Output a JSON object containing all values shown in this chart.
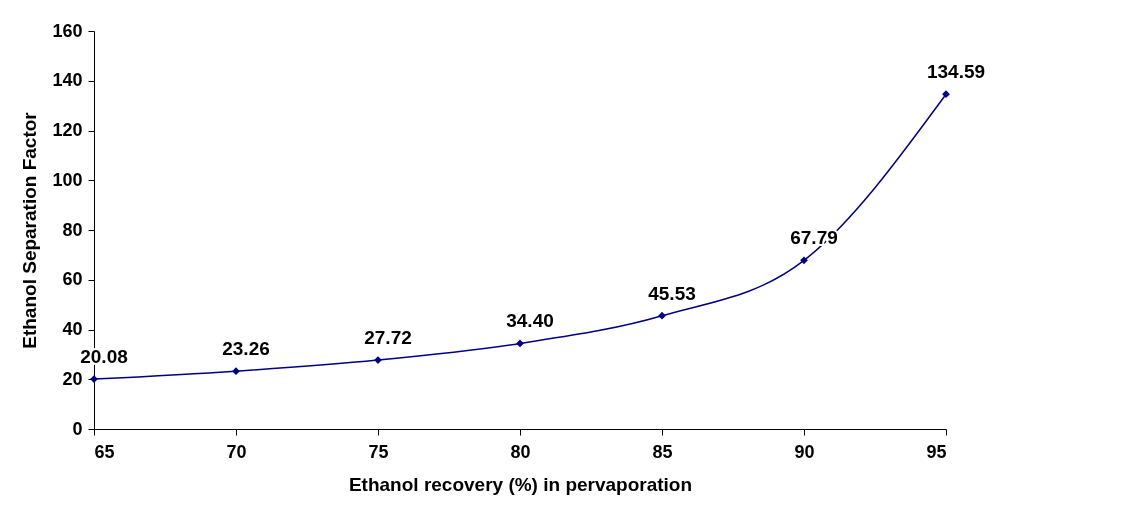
{
  "chart_data": {
    "type": "line",
    "xlabel": "Ethanol recovery (%) in pervaporation",
    "ylabel": "Ethanol Separation Factor",
    "x": [
      65,
      70,
      75,
      80,
      85,
      90,
      95
    ],
    "series": [
      {
        "color": "#000080",
        "values": [
          20.08,
          23.26,
          27.72,
          34.4,
          45.53,
          67.79,
          134.59
        ],
        "value_labels": [
          "20.08",
          "23.26",
          "27.72",
          "34.40",
          "45.53",
          "67.79",
          "134.59"
        ]
      }
    ],
    "xlim": [
      65,
      95
    ],
    "xticks": [
      65,
      70,
      75,
      80,
      85,
      90,
      95
    ],
    "ylim": [
      0,
      160
    ],
    "yticks": [
      0,
      20,
      40,
      60,
      80,
      100,
      120,
      140,
      160
    ],
    "grid": false,
    "marker": "diamond",
    "line_style": "solid"
  }
}
